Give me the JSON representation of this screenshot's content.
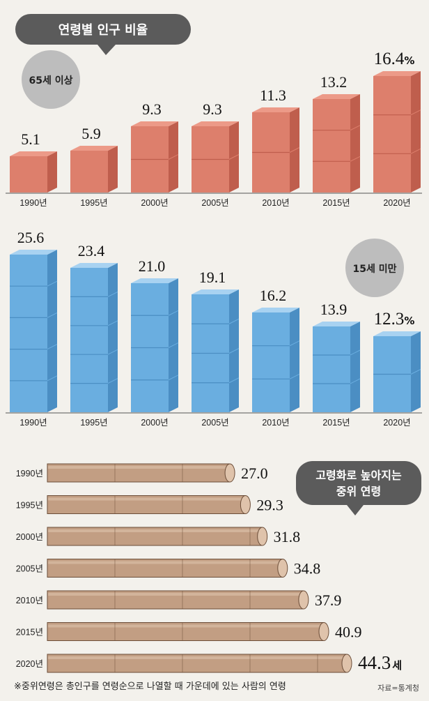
{
  "title": "연령별 인구 비율",
  "colors": {
    "background": "#f3f1ec",
    "speech_bubble": "#5b5b5b",
    "badge": "#bdbdbd",
    "orange_front": "#dd7f6c",
    "orange_side": "#bf5e4d",
    "orange_top": "#ec9a88",
    "blue_front": "#6aaee0",
    "blue_side": "#4b8ec3",
    "blue_top": "#a8d2f1",
    "tan_bar": "#c29e83",
    "tan_cap": "#dfc3ab",
    "tan_edge": "#6b4d38"
  },
  "units": {
    "percent": "%",
    "age": "세"
  },
  "chart_data": [
    {
      "id": "elderly",
      "type": "bar",
      "badge": "65세 이상",
      "categories": [
        "1990년",
        "1995년",
        "2000년",
        "2005년",
        "2010년",
        "2015년",
        "2020년"
      ],
      "values": [
        5.1,
        5.9,
        9.3,
        9.3,
        11.3,
        13.2,
        16.4
      ],
      "value_labels": [
        "5.1",
        "5.9",
        "9.3",
        "9.3",
        "11.3",
        "13.2",
        "16.4"
      ],
      "ylim": [
        0,
        16.4
      ]
    },
    {
      "id": "youth",
      "type": "bar",
      "badge": "15세 미만",
      "categories": [
        "1990년",
        "1995년",
        "2000년",
        "2005년",
        "2010년",
        "2015년",
        "2020년"
      ],
      "values": [
        25.6,
        23.4,
        21.0,
        19.1,
        16.2,
        13.9,
        12.3
      ],
      "value_labels": [
        "25.6",
        "23.4",
        "21.0",
        "19.1",
        "16.2",
        "13.9",
        "12.3"
      ],
      "ylim": [
        0,
        25.6
      ]
    },
    {
      "id": "median_age",
      "type": "bar",
      "orientation": "horizontal",
      "title_lines": [
        "고령화로 높아지는",
        "중위 연령"
      ],
      "categories": [
        "1990년",
        "1995년",
        "2000년",
        "2005년",
        "2010년",
        "2015년",
        "2020년"
      ],
      "values": [
        27.0,
        29.3,
        31.8,
        34.8,
        37.9,
        40.9,
        44.3
      ],
      "value_labels": [
        "27.0",
        "29.3",
        "31.8",
        "34.8",
        "37.9",
        "40.9",
        "44.3"
      ],
      "xlim": [
        0,
        44.3
      ]
    }
  ],
  "footnote": "※중위연령은 총인구를 연령순으로 나열할 때 가운데에 있는 사람의 연령",
  "source": "자료=통계청"
}
